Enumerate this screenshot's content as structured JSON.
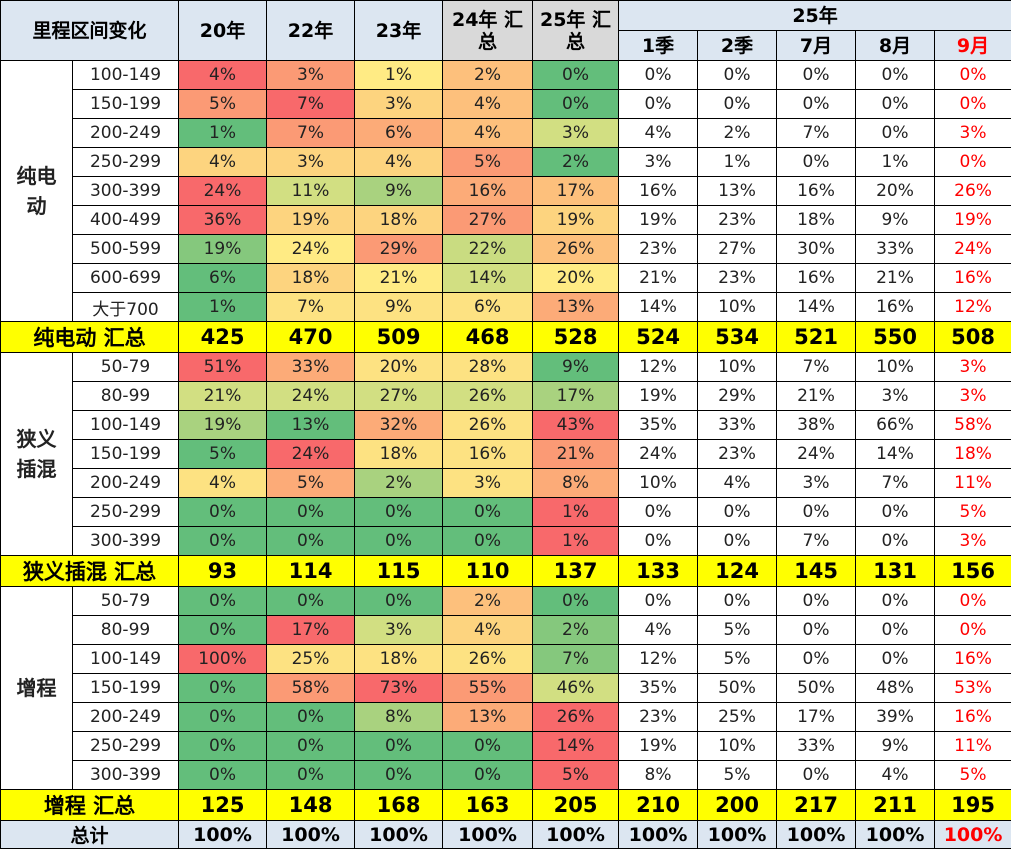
{
  "chart_data": {
    "type": "table",
    "header": {
      "corner": "里程区间变化",
      "years": [
        "20年",
        "22年",
        "23年",
        "24年 汇总",
        "25年 汇总"
      ],
      "group": "25年",
      "periods": [
        "1季",
        "2季",
        "7月",
        "8月",
        "9月"
      ]
    },
    "sections": [
      {
        "name": "纯电动",
        "rows": [
          {
            "range": "100-149",
            "values": [
              "4%",
              "3%",
              "1%",
              "2%",
              "0%",
              "0%",
              "0%",
              "0%",
              "0%",
              "0%"
            ]
          },
          {
            "range": "150-199",
            "values": [
              "5%",
              "7%",
              "3%",
              "4%",
              "0%",
              "0%",
              "0%",
              "0%",
              "0%",
              "0%"
            ]
          },
          {
            "range": "200-249",
            "values": [
              "1%",
              "7%",
              "6%",
              "4%",
              "3%",
              "4%",
              "2%",
              "7%",
              "0%",
              "3%"
            ]
          },
          {
            "range": "250-299",
            "values": [
              "4%",
              "3%",
              "4%",
              "5%",
              "2%",
              "3%",
              "1%",
              "0%",
              "1%",
              "0%"
            ]
          },
          {
            "range": "300-399",
            "values": [
              "24%",
              "11%",
              "9%",
              "16%",
              "17%",
              "16%",
              "13%",
              "16%",
              "20%",
              "26%"
            ]
          },
          {
            "range": "400-499",
            "values": [
              "36%",
              "19%",
              "18%",
              "27%",
              "19%",
              "19%",
              "23%",
              "18%",
              "9%",
              "19%"
            ]
          },
          {
            "range": "500-599",
            "values": [
              "19%",
              "24%",
              "29%",
              "22%",
              "26%",
              "23%",
              "27%",
              "30%",
              "33%",
              "24%"
            ]
          },
          {
            "range": "600-699",
            "values": [
              "6%",
              "18%",
              "21%",
              "14%",
              "20%",
              "21%",
              "23%",
              "16%",
              "21%",
              "16%"
            ]
          },
          {
            "range": "大于700",
            "values": [
              "1%",
              "7%",
              "9%",
              "6%",
              "13%",
              "14%",
              "10%",
              "14%",
              "16%",
              "12%"
            ]
          }
        ],
        "summary": {
          "label": "纯电动 汇总",
          "values": [
            "425",
            "470",
            "509",
            "468",
            "528",
            "524",
            "534",
            "521",
            "550",
            "508"
          ]
        }
      },
      {
        "name": "狭义插混",
        "rows": [
          {
            "range": "50-79",
            "values": [
              "51%",
              "33%",
              "20%",
              "28%",
              "9%",
              "12%",
              "10%",
              "7%",
              "10%",
              "3%"
            ]
          },
          {
            "range": "80-99",
            "values": [
              "21%",
              "24%",
              "27%",
              "26%",
              "17%",
              "19%",
              "29%",
              "21%",
              "3%",
              "3%"
            ]
          },
          {
            "range": "100-149",
            "values": [
              "19%",
              "13%",
              "32%",
              "26%",
              "43%",
              "35%",
              "33%",
              "38%",
              "66%",
              "58%"
            ]
          },
          {
            "range": "150-199",
            "values": [
              "5%",
              "24%",
              "18%",
              "16%",
              "21%",
              "24%",
              "23%",
              "24%",
              "14%",
              "18%"
            ]
          },
          {
            "range": "200-249",
            "values": [
              "4%",
              "5%",
              "2%",
              "3%",
              "8%",
              "10%",
              "4%",
              "3%",
              "7%",
              "11%"
            ]
          },
          {
            "range": "250-299",
            "values": [
              "0%",
              "0%",
              "0%",
              "0%",
              "1%",
              "0%",
              "0%",
              "0%",
              "0%",
              "5%"
            ]
          },
          {
            "range": "300-399",
            "values": [
              "0%",
              "0%",
              "0%",
              "0%",
              "1%",
              "0%",
              "0%",
              "7%",
              "0%",
              "3%"
            ]
          }
        ],
        "summary": {
          "label": "狭义插混 汇总",
          "values": [
            "93",
            "114",
            "115",
            "110",
            "137",
            "133",
            "124",
            "145",
            "131",
            "156"
          ]
        }
      },
      {
        "name": "增程",
        "rows": [
          {
            "range": "50-79",
            "values": [
              "0%",
              "0%",
              "0%",
              "2%",
              "0%",
              "0%",
              "0%",
              "0%",
              "0%",
              "0%"
            ]
          },
          {
            "range": "80-99",
            "values": [
              "0%",
              "17%",
              "3%",
              "4%",
              "2%",
              "4%",
              "5%",
              "0%",
              "0%",
              "0%"
            ]
          },
          {
            "range": "100-149",
            "values": [
              "100%",
              "25%",
              "18%",
              "26%",
              "7%",
              "12%",
              "5%",
              "0%",
              "0%",
              "16%"
            ]
          },
          {
            "range": "150-199",
            "values": [
              "0%",
              "58%",
              "73%",
              "55%",
              "46%",
              "35%",
              "50%",
              "50%",
              "48%",
              "53%"
            ]
          },
          {
            "range": "200-249",
            "values": [
              "0%",
              "0%",
              "8%",
              "13%",
              "26%",
              "23%",
              "25%",
              "17%",
              "39%",
              "16%"
            ]
          },
          {
            "range": "250-299",
            "values": [
              "0%",
              "0%",
              "0%",
              "0%",
              "14%",
              "19%",
              "10%",
              "33%",
              "9%",
              "11%"
            ]
          },
          {
            "range": "300-399",
            "values": [
              "0%",
              "0%",
              "0%",
              "0%",
              "5%",
              "8%",
              "5%",
              "0%",
              "4%",
              "5%"
            ]
          }
        ],
        "summary": {
          "label": "增程 汇总",
          "values": [
            "125",
            "148",
            "168",
            "163",
            "205",
            "210",
            "200",
            "217",
            "211",
            "195"
          ]
        }
      }
    ],
    "total": {
      "label": "总计",
      "values": [
        "100%",
        "100%",
        "100%",
        "100%",
        "100%",
        "100%",
        "100%",
        "100%",
        "100%",
        "100%"
      ]
    },
    "heat_colors": {
      "0%": "#63be7b",
      "1%": "#f8696b",
      "2%": "#fdc07c",
      "3%": "#d2df82",
      "4%": "#fdd47f",
      "5%": "#f8696b",
      "6%": "#fb9a75",
      "7%": "#f8696b",
      "8%": "#fb9a75",
      "9%": "#63be7b",
      "11%": "#d2df82",
      "13%": "#63be7b",
      "14%": "#f8696b",
      "16%": "#fdc07c",
      "17%": "#f8696b",
      "18%": "#fb9a75",
      "19%": "#fdd47f",
      "20%": "#fdd47f",
      "21%": "#fb9a75",
      "22%": "#c9dc81",
      "24%": "#f8696b",
      "25%": "#ffeb84",
      "26%": "#ffeb84",
      "27%": "#fb9a75",
      "28%": "#fb9a75",
      "29%": "#fb9a75",
      "32%": "#fb9a75",
      "33%": "#fb9a75",
      "36%": "#f8696b",
      "43%": "#f8696b",
      "46%": "#d2df82",
      "51%": "#f8696b",
      "55%": "#fb9a75",
      "58%": "#fb9a75",
      "73%": "#f8696b",
      "100%": "#f8696b"
    },
    "heat_cells": {
      "纯电动": [
        [
          "#f8696b",
          "#fb9a75",
          "#ffeb84",
          "#fdc07c",
          "#63be7b"
        ],
        [
          "#fb9a75",
          "#f8696b",
          "#fdd47f",
          "#fdc07c",
          "#63be7b"
        ],
        [
          "#63be7b",
          "#fb9a75",
          "#fcab78",
          "#fdc07c",
          "#d2df82"
        ],
        [
          "#fdd47f",
          "#fdd47f",
          "#fdd47f",
          "#fb9a75",
          "#63be7b"
        ],
        [
          "#f8696b",
          "#d2df82",
          "#a9d27f",
          "#fcab78",
          "#fdc07c"
        ],
        [
          "#f8696b",
          "#fdd47f",
          "#fdd47f",
          "#fb9a75",
          "#fdd47f"
        ],
        [
          "#85c87d",
          "#ffeb84",
          "#fb9a75",
          "#c9dc81",
          "#fdc07c"
        ],
        [
          "#63be7b",
          "#fdd47f",
          "#ffeb84",
          "#d2df82",
          "#ffeb84"
        ],
        [
          "#63be7b",
          "#fde282",
          "#fde282",
          "#fde282",
          "#fcab78"
        ]
      ],
      "狭义插混": [
        [
          "#f8696b",
          "#fcab78",
          "#fde282",
          "#fde282",
          "#63be7b"
        ],
        [
          "#d2df82",
          "#d2df82",
          "#d2df82",
          "#d2df82",
          "#a9d27f"
        ],
        [
          "#a9d27f",
          "#63be7b",
          "#fcab78",
          "#fde282",
          "#f8696b"
        ],
        [
          "#63be7b",
          "#f8696b",
          "#fde282",
          "#fde282",
          "#fb9a75"
        ],
        [
          "#fde282",
          "#fcab78",
          "#a9d27f",
          "#fde282",
          "#fcab78"
        ],
        [
          "#63be7b",
          "#63be7b",
          "#63be7b",
          "#63be7b",
          "#f8696b"
        ],
        [
          "#63be7b",
          "#63be7b",
          "#63be7b",
          "#63be7b",
          "#f8696b"
        ]
      ],
      "增程": [
        [
          "#63be7b",
          "#63be7b",
          "#63be7b",
          "#fdc07c",
          "#63be7b"
        ],
        [
          "#63be7b",
          "#f8696b",
          "#d2df82",
          "#fdd47f",
          "#85c87d"
        ],
        [
          "#f8696b",
          "#fde282",
          "#fde282",
          "#fde282",
          "#85c87d"
        ],
        [
          "#63be7b",
          "#fb9a75",
          "#f8696b",
          "#fb9a75",
          "#d2df82"
        ],
        [
          "#63be7b",
          "#63be7b",
          "#a9d27f",
          "#fcab78",
          "#f8696b"
        ],
        [
          "#63be7b",
          "#63be7b",
          "#63be7b",
          "#63be7b",
          "#f8696b"
        ],
        [
          "#63be7b",
          "#63be7b",
          "#63be7b",
          "#63be7b",
          "#f8696b"
        ]
      ]
    }
  }
}
